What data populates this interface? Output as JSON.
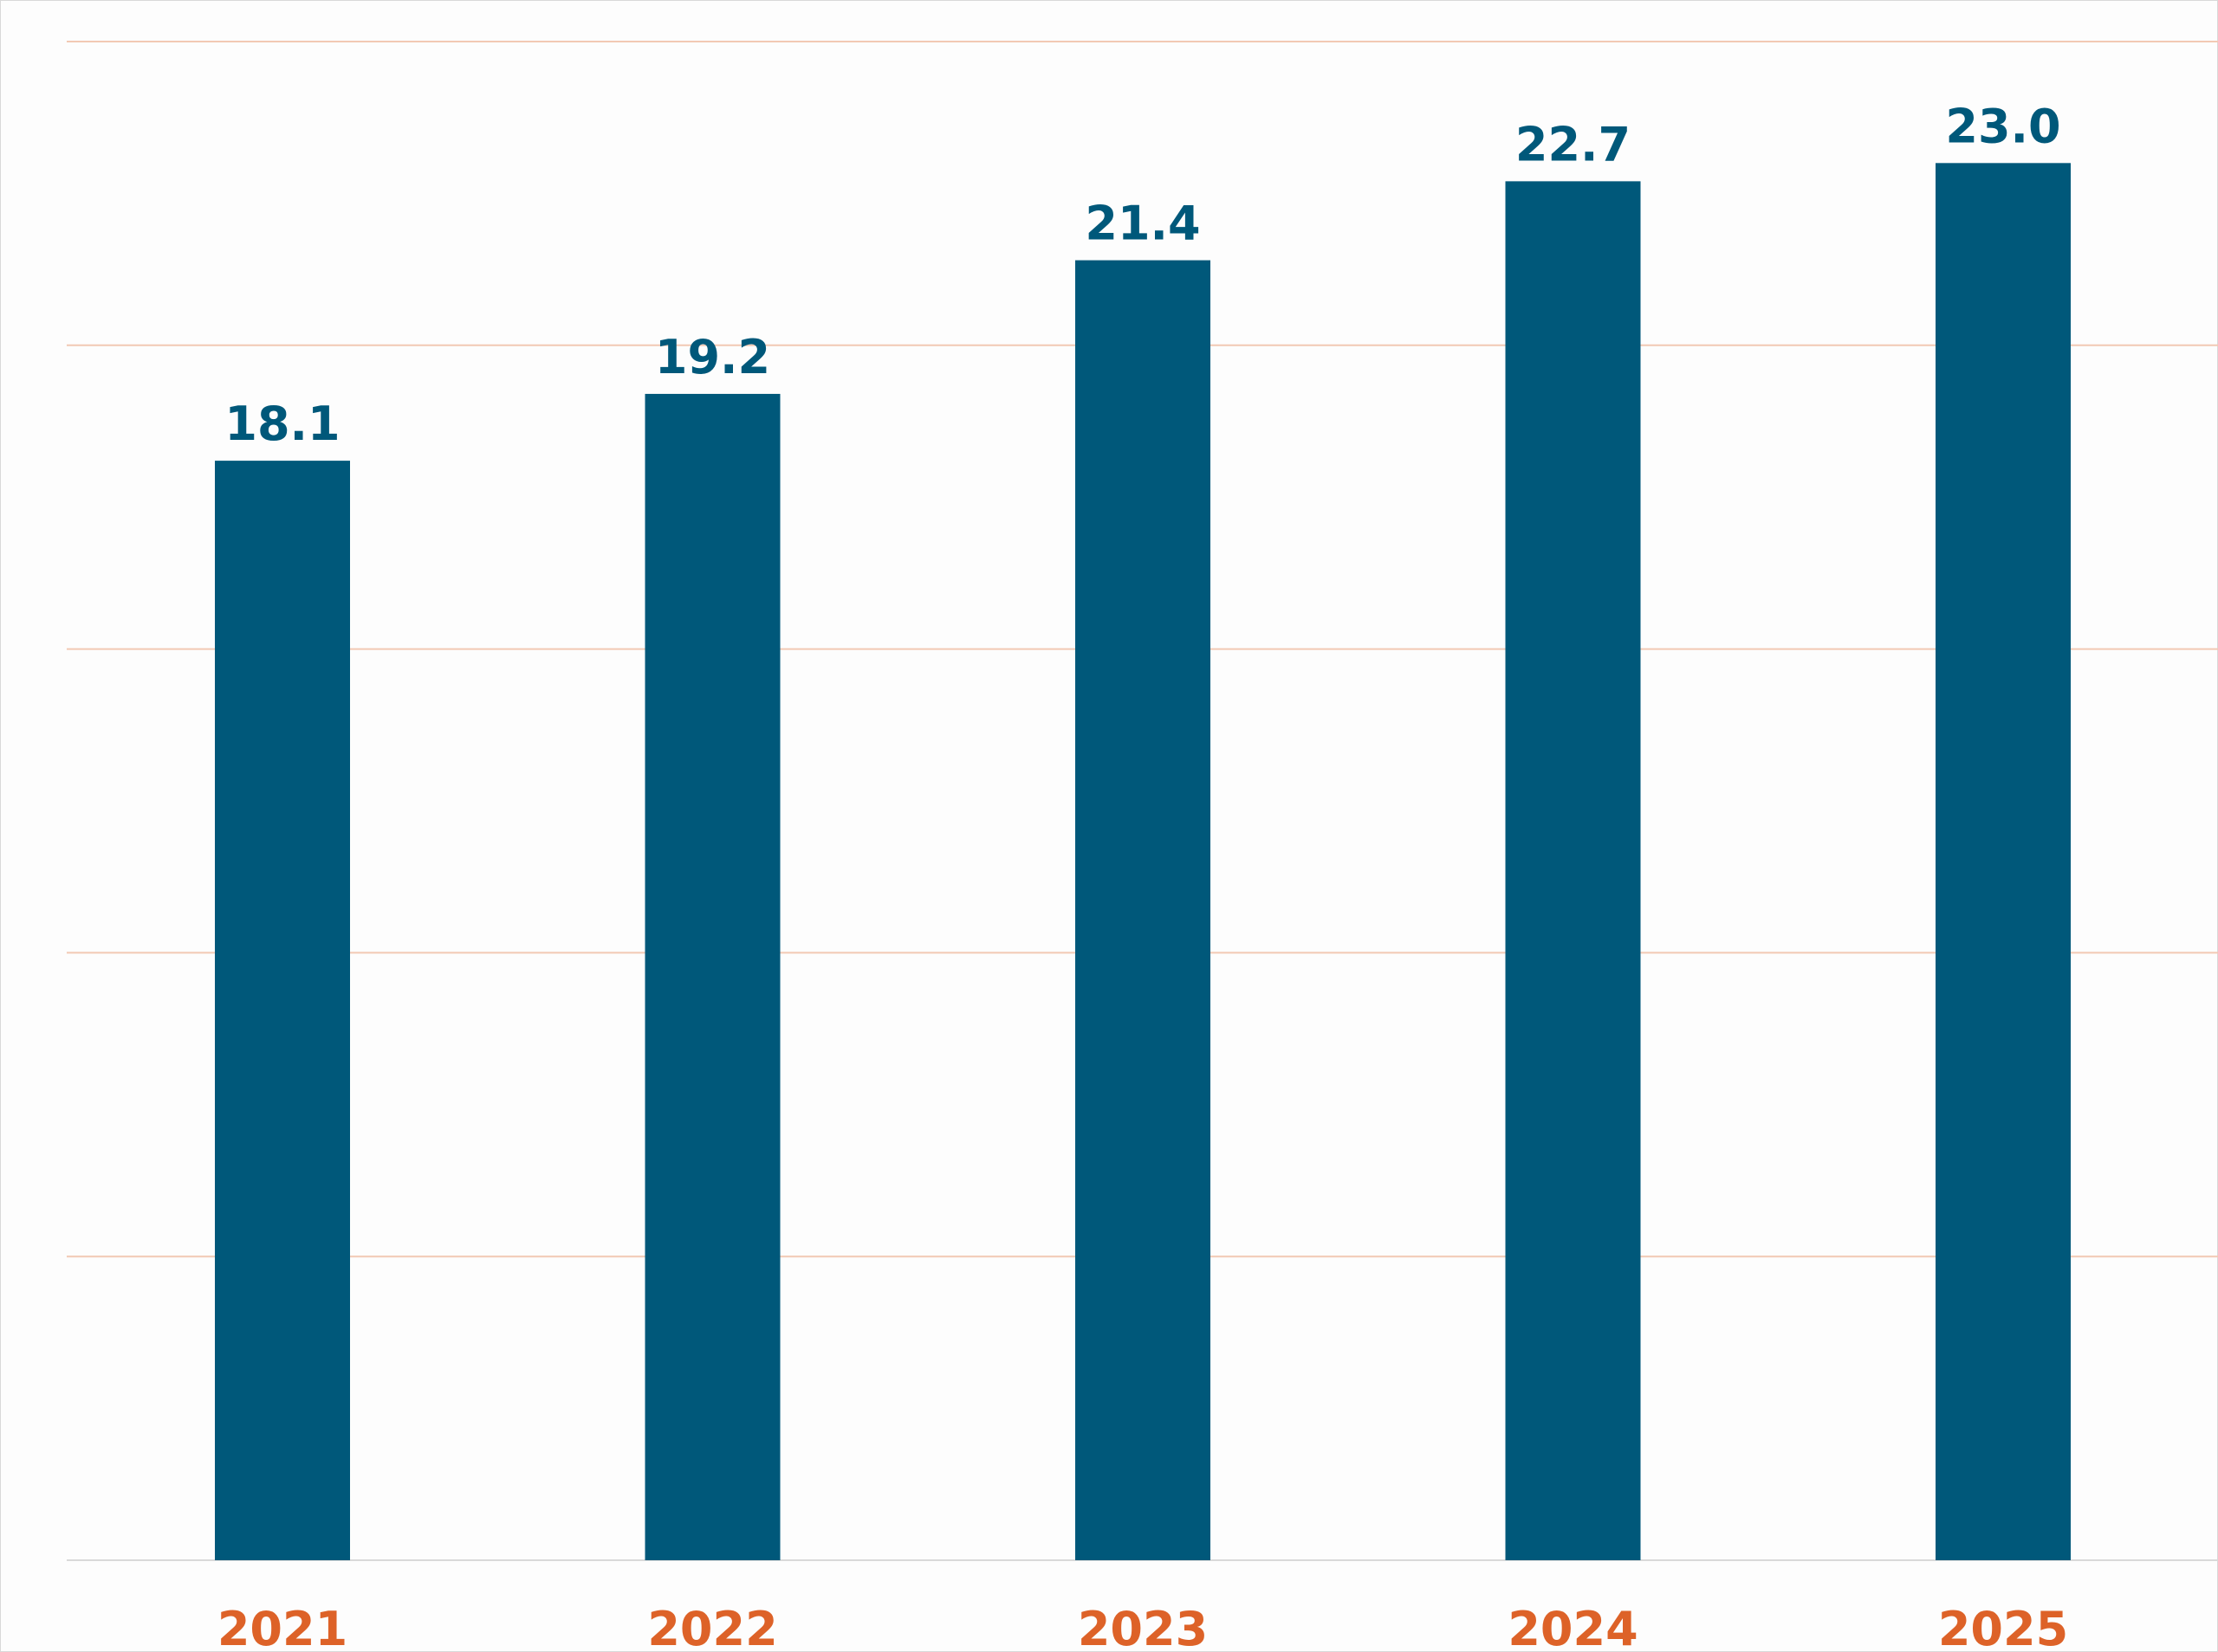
{
  "chart_data": {
    "type": "bar",
    "categories": [
      "2021",
      "2022",
      "2023",
      "2024",
      "2025"
    ],
    "values": [
      18.1,
      19.2,
      21.4,
      22.7,
      23.0
    ],
    "value_labels": [
      "18.1",
      "19.2",
      "21.4",
      "22.7",
      "23.0"
    ],
    "title": "",
    "xlabel": "",
    "ylabel": "",
    "ylim": [
      0,
      25
    ],
    "grid": true,
    "legend": "none",
    "colors": {
      "bar": "#00587a",
      "value_label": "#00587a",
      "category_label": "#dd6228",
      "gridline": "#f2c9b4",
      "baseline": "#d9d9d9"
    }
  }
}
